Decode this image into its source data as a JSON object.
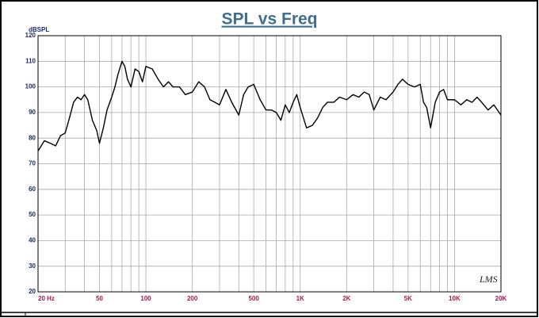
{
  "chart_data": {
    "type": "line",
    "title": "SPL vs Freq",
    "y_label": "dBSPL",
    "annotation": "LMS",
    "x_scale": "log",
    "xlim": [
      20,
      20000
    ],
    "ylim": [
      20,
      120
    ],
    "yticks": [
      20,
      30,
      40,
      50,
      60,
      70,
      80,
      90,
      100,
      110,
      120
    ],
    "xticks": [
      {
        "value": 20,
        "label": "20 Hz"
      },
      50,
      100,
      200,
      500,
      {
        "value": 1000,
        "label": "1K"
      },
      {
        "value": 2000,
        "label": "2K"
      },
      {
        "value": 5000,
        "label": "5K"
      },
      {
        "value": 10000,
        "label": "10K"
      },
      {
        "value": 20000,
        "label": "20K"
      }
    ],
    "xgrid": [
      30,
      40,
      60,
      70,
      80,
      90,
      300,
      400,
      600,
      700,
      800,
      900,
      3000,
      4000,
      6000,
      7000,
      8000,
      9000
    ],
    "grid": true,
    "x": [
      20,
      22,
      24,
      26,
      28,
      30,
      32,
      34,
      36,
      38,
      40,
      42,
      45,
      48,
      50,
      53,
      56,
      60,
      63,
      66,
      70,
      73,
      76,
      80,
      85,
      90,
      95,
      100,
      110,
      120,
      130,
      140,
      150,
      165,
      180,
      200,
      220,
      240,
      260,
      280,
      300,
      330,
      360,
      400,
      430,
      460,
      500,
      550,
      600,
      650,
      700,
      750,
      800,
      850,
      900,
      950,
      1000,
      1100,
      1200,
      1300,
      1400,
      1500,
      1650,
      1800,
      2000,
      2200,
      2400,
      2600,
      2800,
      3000,
      3300,
      3600,
      4000,
      4300,
      4600,
      5000,
      5500,
      6000,
      6300,
      6600,
      7000,
      7500,
      8000,
      8500,
      9000,
      10000,
      11000,
      12000,
      13000,
      14000,
      15000,
      16500,
      18000,
      20000
    ],
    "series": [
      {
        "color": "#000000",
        "values": [
          75,
          79,
          78,
          77,
          81,
          82,
          88,
          94,
          96,
          95,
          97,
          95,
          87,
          83,
          78,
          84,
          91,
          96,
          100,
          105,
          110,
          108,
          103,
          100,
          107,
          106,
          102,
          108,
          107,
          103,
          100,
          102,
          100,
          100,
          97,
          98,
          102,
          100,
          95,
          94,
          93,
          99,
          94,
          89,
          97,
          100,
          101,
          95,
          91,
          91,
          90,
          87,
          93,
          90,
          94,
          97,
          92,
          84,
          85,
          88,
          92,
          94,
          94,
          96,
          95,
          97,
          96,
          98,
          97,
          91,
          96,
          95,
          98,
          101,
          103,
          101,
          100,
          101,
          94,
          92,
          84,
          94,
          98,
          99,
          95,
          95,
          93,
          95,
          94,
          96,
          94,
          91,
          93,
          89
        ]
      }
    ]
  }
}
